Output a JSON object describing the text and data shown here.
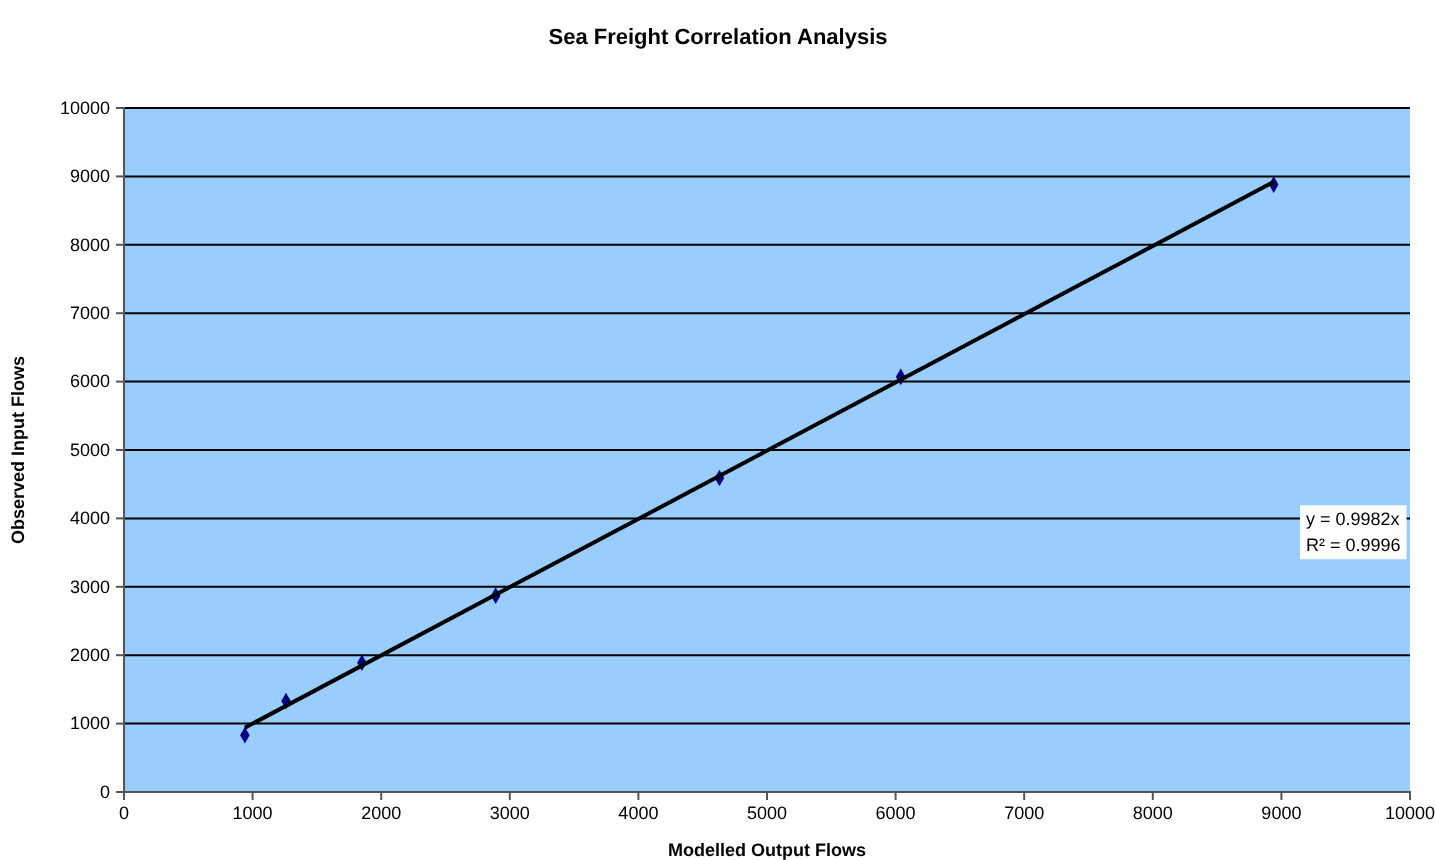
{
  "chart_data": {
    "type": "scatter",
    "title": "Sea Freight Correlation Analysis",
    "xlabel": "Modelled Output Flows",
    "ylabel": "Observed Input Flows",
    "series": [
      {
        "color": "#000080",
        "marker": "diamond",
        "x": [
          940,
          1260,
          1850,
          2890,
          4630,
          6040,
          8940
        ],
        "values": [
          830,
          1330,
          1890,
          2870,
          4590,
          6070,
          8880
        ]
      },
      {
        "type": "line",
        "color": "#000000",
        "marker": "none",
        "line_style": "solid",
        "x": [
          940,
          8940
        ],
        "values": [
          940,
          8920
        ]
      }
    ],
    "xlim": [
      0,
      10000
    ],
    "xticks": [
      0,
      1000,
      2000,
      3000,
      4000,
      5000,
      6000,
      7000,
      8000,
      9000,
      10000
    ],
    "ylim": [
      0,
      10000
    ],
    "yticks": [
      0,
      1000,
      2000,
      3000,
      4000,
      5000,
      6000,
      7000,
      8000,
      9000,
      10000
    ],
    "grid": "y",
    "annotations": [
      "y = 0.9982x",
      "R² = 0.9996"
    ]
  }
}
